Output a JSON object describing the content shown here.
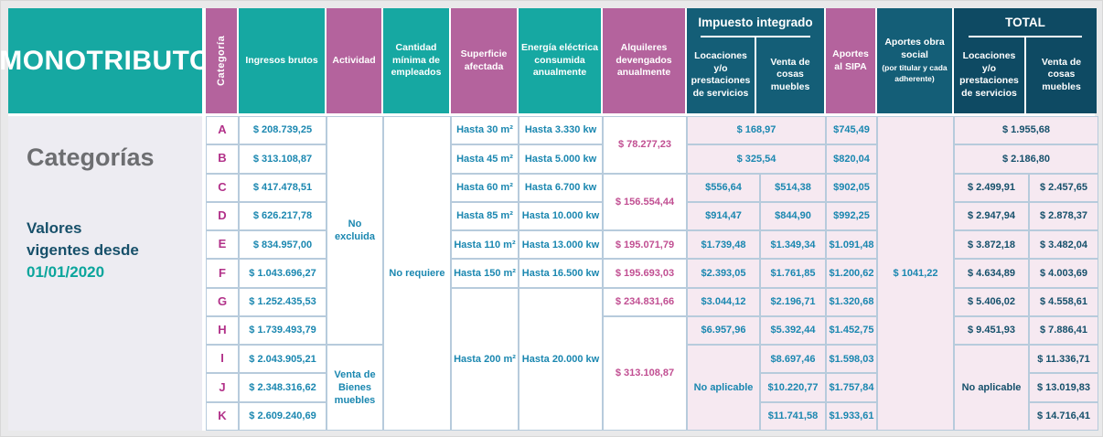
{
  "brand": {
    "title": "MONOTRIBUTO"
  },
  "sidebar": {
    "heading": "Categorías",
    "line1": "Valores",
    "line2": "vigentes desde",
    "date": "01/01/2020"
  },
  "colors": {
    "teal": "#16a8a2",
    "pink": "#b4639d",
    "dark_teal": "#145e77",
    "navy": "#0e4a63",
    "value_blue": "#1a87b0",
    "value_pink": "#c14f92",
    "value_navy": "#15506b",
    "letter_magenta": "#b23189",
    "cell_pink_bg": "#f6e9f1"
  },
  "columns": {
    "categoria": "Categoría",
    "ingresos": "Ingresos brutos",
    "actividad": "Actividad",
    "cantidad_minima": "Cantidad mínima de empleados",
    "superficie": "Superficie afectada",
    "energia": "Energía eléctrica consumida anualmente",
    "alquileres": "Alquileres devengados anualmente",
    "impuesto_integrado": "Impuesto integrado",
    "locaciones": "Locaciones y/o prestaciones de servicios",
    "venta_muebles": "Venta de cosas muebles",
    "aportes_sipa": "Aportes al SIPA",
    "aportes_obra_social": "Aportes obra social",
    "aportes_obra_social_note": "(por titular y cada adherente)",
    "total": "TOTAL"
  },
  "spans": {
    "actividad_no_excluida": "No excluida",
    "actividad_venta_bienes": "Venta de Bienes muebles",
    "cantidad_no_requiere": "No requiere",
    "superficie_g_k": "Hasta 200 m²",
    "energia_g_k": "Hasta 20.000 kw",
    "alquileres_ab": "$ 78.277,23",
    "alquileres_cd": "$ 156.554,44",
    "alquileres_hk": "$ 313.108,87",
    "impuesto_a": "$ 168,97",
    "impuesto_b": "$ 325,54",
    "impuesto_loc_no_aplicable": "No aplicable",
    "obra_social_all": "$ 1041,22",
    "total_a": "$ 1.955,68",
    "total_b": "$ 2.186,80",
    "total_loc_no_aplicable": "No aplicable"
  },
  "rows": [
    {
      "letter": "A",
      "ingresos": "$ 208.739,25",
      "superficie": "Hasta 30 m²",
      "energia": "Hasta 3.330 kw",
      "sipa": "$745,49"
    },
    {
      "letter": "B",
      "ingresos": "$ 313.108,87",
      "superficie": "Hasta 45 m²",
      "energia": "Hasta 5.000 kw",
      "sipa": "$820,04"
    },
    {
      "letter": "C",
      "ingresos": "$ 417.478,51",
      "superficie": "Hasta 60 m²",
      "energia": "Hasta 6.700 kw",
      "imp_loc": "$556,64",
      "imp_venta": "$514,38",
      "sipa": "$902,05",
      "tot_loc": "$ 2.499,91",
      "tot_venta": "$ 2.457,65"
    },
    {
      "letter": "D",
      "ingresos": "$ 626.217,78",
      "superficie": "Hasta 85 m²",
      "energia": "Hasta 10.000 kw",
      "imp_loc": "$914,47",
      "imp_venta": "$844,90",
      "sipa": "$992,25",
      "tot_loc": "$ 2.947,94",
      "tot_venta": "$ 2.878,37"
    },
    {
      "letter": "E",
      "ingresos": "$ 834.957,00",
      "superficie": "Hasta 110 m²",
      "energia": "Hasta 13.000 kw",
      "alquileres": "$ 195.071,79",
      "imp_loc": "$1.739,48",
      "imp_venta": "$1.349,34",
      "sipa": "$1.091,48",
      "tot_loc": "$ 3.872,18",
      "tot_venta": "$ 3.482,04"
    },
    {
      "letter": "F",
      "ingresos": "$ 1.043.696,27",
      "superficie": "Hasta 150 m²",
      "energia": "Hasta 16.500 kw",
      "alquileres": "$ 195.693,03",
      "imp_loc": "$2.393,05",
      "imp_venta": "$1.761,85",
      "sipa": "$1.200,62",
      "tot_loc": "$ 4.634,89",
      "tot_venta": "$ 4.003,69"
    },
    {
      "letter": "G",
      "ingresos": "$ 1.252.435,53",
      "alquileres": "$ 234.831,66",
      "imp_loc": "$3.044,12",
      "imp_venta": "$2.196,71",
      "sipa": "$1.320,68",
      "tot_loc": "$ 5.406,02",
      "tot_venta": "$ 4.558,61"
    },
    {
      "letter": "H",
      "ingresos": "$ 1.739.493,79",
      "imp_loc": "$6.957,96",
      "imp_venta": "$5.392,44",
      "sipa": "$1.452,75",
      "tot_loc": "$ 9.451,93",
      "tot_venta": "$ 7.886,41"
    },
    {
      "letter": "I",
      "ingresos": "$ 2.043.905,21",
      "imp_venta": "$8.697,46",
      "sipa": "$1.598,03",
      "tot_venta": "$ 11.336,71"
    },
    {
      "letter": "J",
      "ingresos": "$ 2.348.316,62",
      "imp_venta": "$10.220,77",
      "sipa": "$1.757,84",
      "tot_venta": "$ 13.019,83"
    },
    {
      "letter": "K",
      "ingresos": "$ 2.609.240,69",
      "imp_venta": "$11.741,58",
      "sipa": "$1.933,61",
      "tot_venta": "$ 14.716,41"
    }
  ]
}
